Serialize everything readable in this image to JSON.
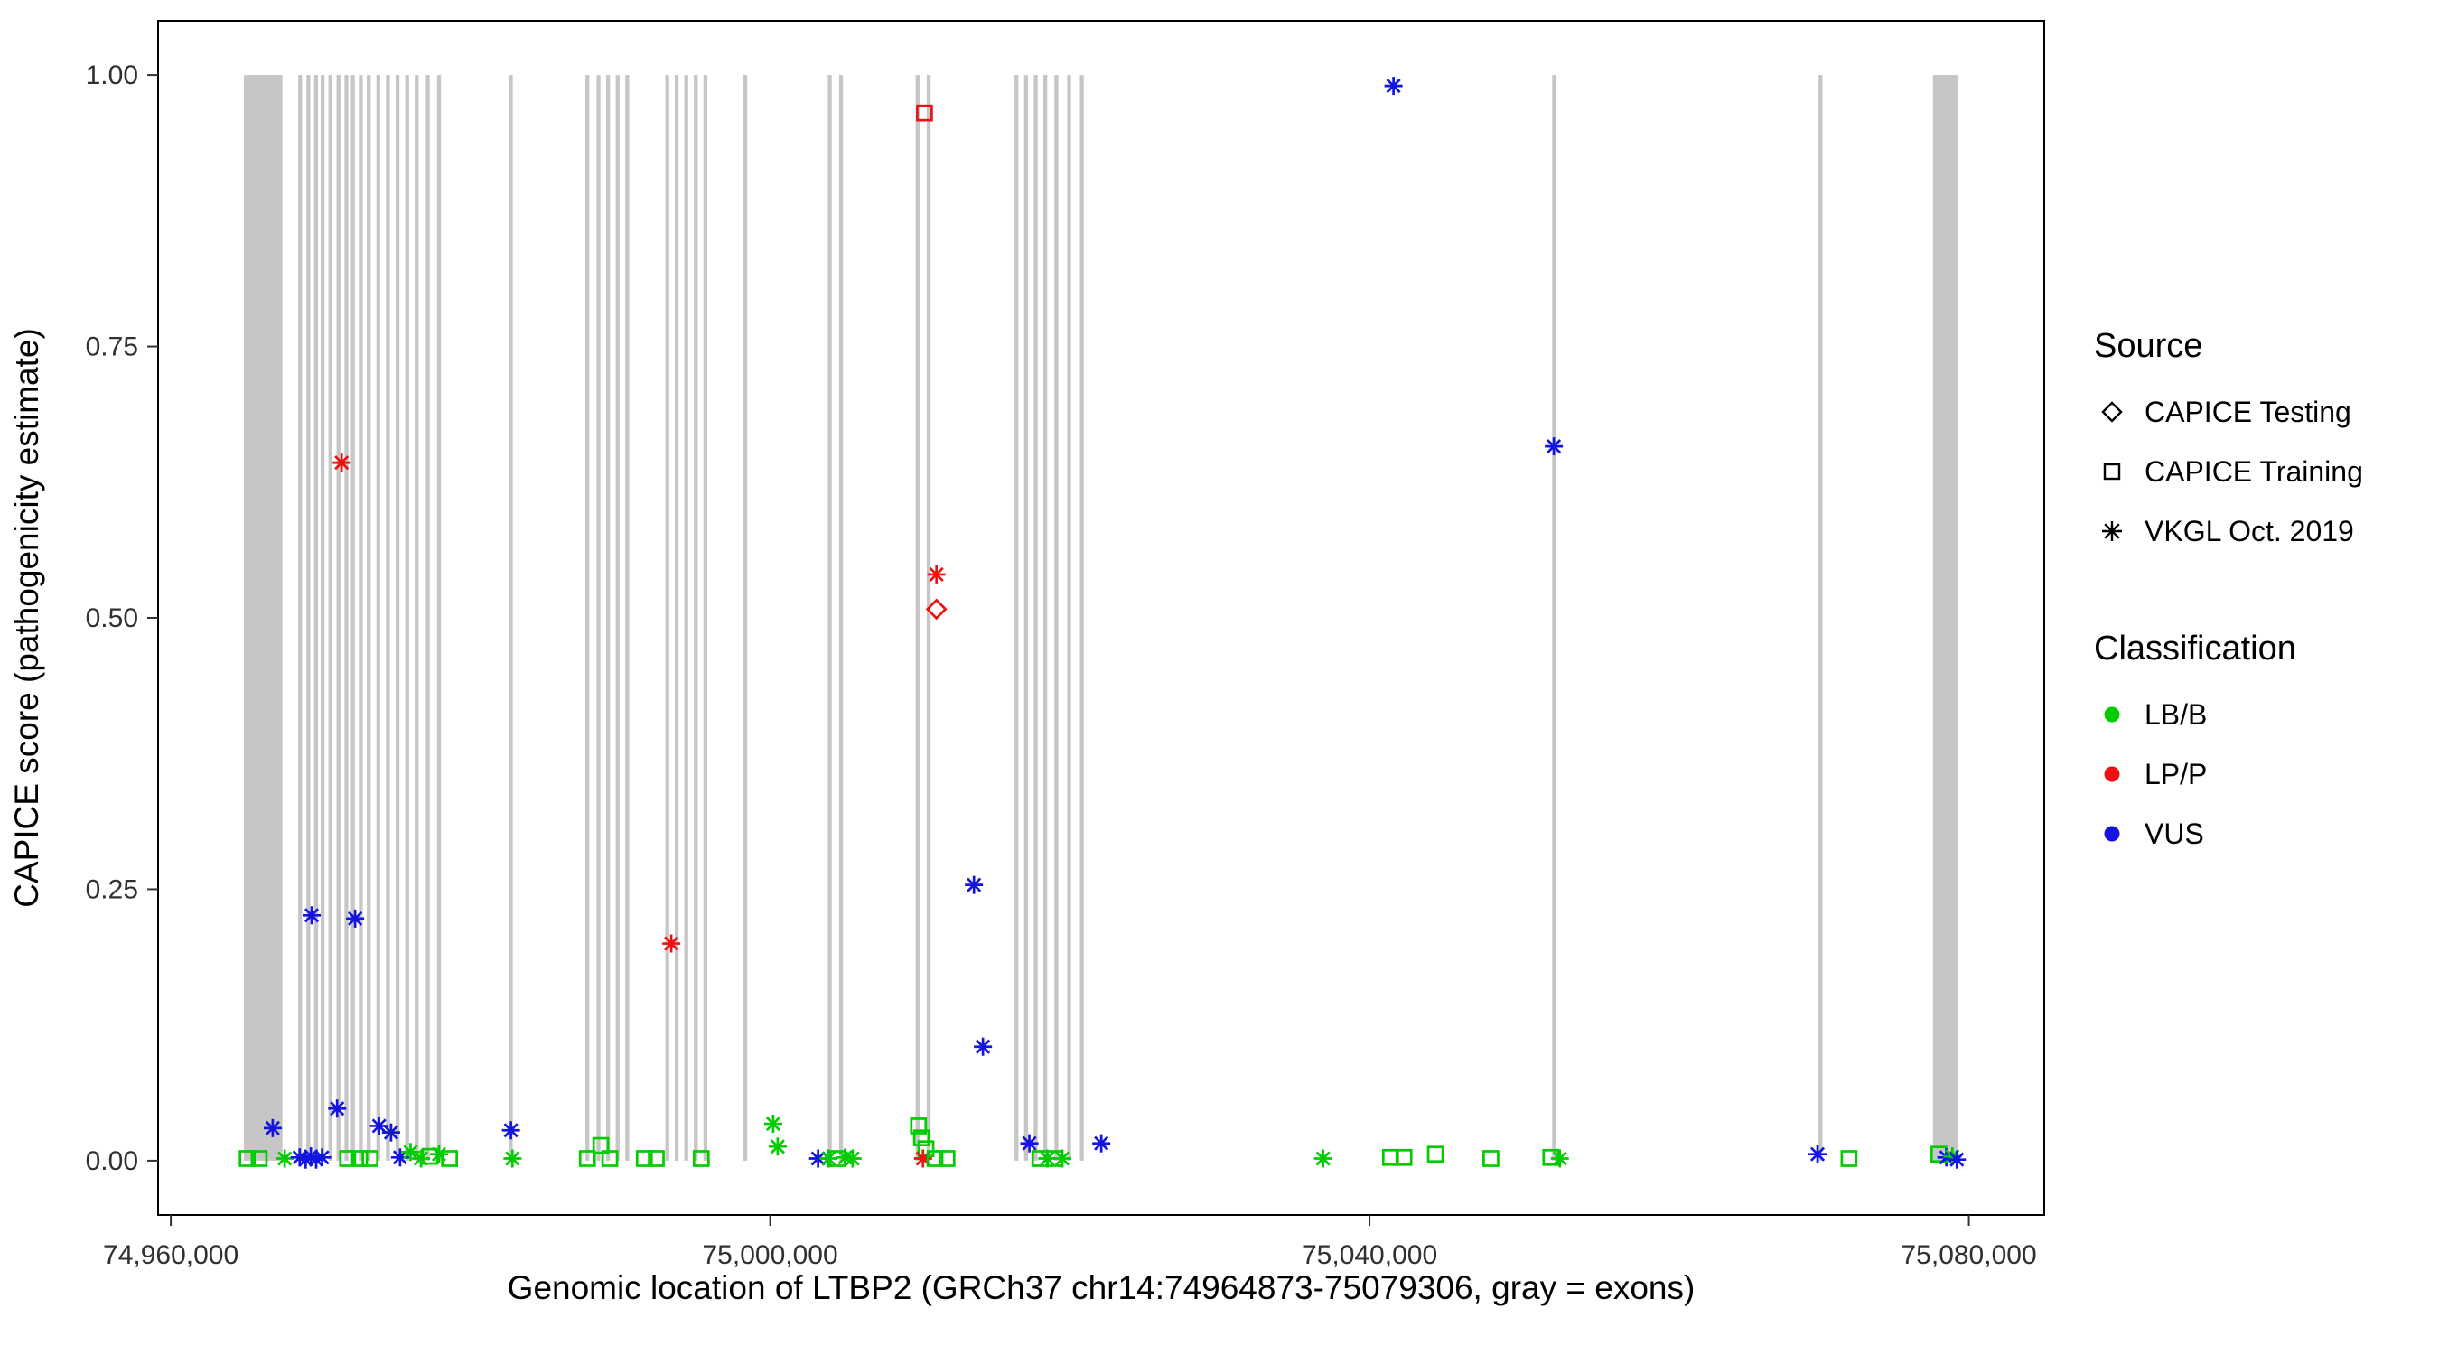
{
  "chart_data": {
    "type": "scatter",
    "title": "",
    "xlabel": "Genomic location of LTBP2 (GRCh37 chr14:74964873-75079306, gray = exons)",
    "ylabel": "CAPICE score (pathogenicity estimate)",
    "xlim": [
      74959150,
      75085030
    ],
    "ylim": [
      -0.05,
      1.05
    ],
    "grid": false,
    "legend_position": "right",
    "x_ticks": [
      {
        "value": 74960000,
        "label": "74,960,000"
      },
      {
        "value": 75000000,
        "label": "75,000,000"
      },
      {
        "value": 75040000,
        "label": "75,040,000"
      },
      {
        "value": 75080000,
        "label": "75,080,000"
      }
    ],
    "y_ticks": [
      {
        "value": 0.0,
        "label": "0.00"
      },
      {
        "value": 0.25,
        "label": "0.25"
      },
      {
        "value": 0.5,
        "label": "0.50"
      },
      {
        "value": 0.75,
        "label": "0.75"
      },
      {
        "value": 1.0,
        "label": "1.00"
      }
    ],
    "colors": {
      "LB/B": "#00cc00",
      "LP/P": "#ee1111",
      "VUS": "#1414e0",
      "exon": "#c6c6c6"
    },
    "source_shapes": {
      "CAPICE Testing": "diamond",
      "CAPICE Training": "square",
      "VKGL Oct. 2019": "asterisk"
    },
    "legend": {
      "source_title": "Source",
      "source_items": [
        {
          "label": "CAPICE Testing",
          "shape": "diamond"
        },
        {
          "label": "CAPICE Training",
          "shape": "square"
        },
        {
          "label": "VKGL Oct. 2019",
          "shape": "asterisk"
        }
      ],
      "class_title": "Classification",
      "class_items": [
        {
          "label": "LB/B",
          "color": "#00cc00"
        },
        {
          "label": "LP/P",
          "color": "#ee1111"
        },
        {
          "label": "VUS",
          "color": "#1414e0"
        }
      ]
    },
    "exons": [
      [
        74964873,
        74967450
      ],
      [
        74968500,
        74968760
      ],
      [
        74969050,
        74969310
      ],
      [
        74969560,
        74969820
      ],
      [
        74970000,
        74970260
      ],
      [
        74970520,
        74970780
      ],
      [
        74971060,
        74971320
      ],
      [
        74971590,
        74971850
      ],
      [
        74972020,
        74972280
      ],
      [
        74972550,
        74972810
      ],
      [
        74973080,
        74973340
      ],
      [
        74973720,
        74973980
      ],
      [
        74974360,
        74974620
      ],
      [
        74975000,
        74975260
      ],
      [
        74975640,
        74975900
      ],
      [
        74976280,
        74976540
      ],
      [
        74977020,
        74977280
      ],
      [
        74977770,
        74978030
      ],
      [
        74982560,
        74982820
      ],
      [
        74987670,
        74987930
      ],
      [
        74988410,
        74988670
      ],
      [
        74989050,
        74989310
      ],
      [
        74989690,
        74989950
      ],
      [
        74990330,
        74990590
      ],
      [
        74993000,
        74993260
      ],
      [
        74993630,
        74993890
      ],
      [
        74994270,
        74994530
      ],
      [
        74994910,
        74995170
      ],
      [
        74995550,
        74995810
      ],
      [
        74998210,
        74998470
      ],
      [
        75003850,
        75004110
      ],
      [
        75004600,
        75004860
      ],
      [
        75009710,
        75009970
      ],
      [
        75010450,
        75010710
      ],
      [
        75016310,
        75016570
      ],
      [
        75016950,
        75017210
      ],
      [
        75017590,
        75017850
      ],
      [
        75018230,
        75018490
      ],
      [
        75018970,
        75019230
      ],
      [
        75019820,
        75020080
      ],
      [
        75020670,
        75020930
      ],
      [
        75052190,
        75052450
      ],
      [
        75069970,
        75070230
      ],
      [
        75077600,
        75079306
      ]
    ],
    "points": [
      {
        "x": 75041600,
        "y": 0.99,
        "source": "VKGL Oct. 2019",
        "class": "VUS"
      },
      {
        "x": 75010300,
        "y": 0.965,
        "source": "CAPICE Training",
        "class": "LP/P"
      },
      {
        "x": 75052300,
        "y": 0.658,
        "source": "VKGL Oct. 2019",
        "class": "VUS"
      },
      {
        "x": 74971400,
        "y": 0.643,
        "source": "VKGL Oct. 2019",
        "class": "LP/P"
      },
      {
        "x": 75011100,
        "y": 0.54,
        "source": "VKGL Oct. 2019",
        "class": "LP/P"
      },
      {
        "x": 75011100,
        "y": 0.508,
        "source": "CAPICE Testing",
        "class": "LP/P"
      },
      {
        "x": 75013600,
        "y": 0.254,
        "source": "VKGL Oct. 2019",
        "class": "VUS"
      },
      {
        "x": 74969400,
        "y": 0.226,
        "source": "VKGL Oct. 2019",
        "class": "VUS"
      },
      {
        "x": 74972300,
        "y": 0.223,
        "source": "VKGL Oct. 2019",
        "class": "VUS"
      },
      {
        "x": 74993400,
        "y": 0.2,
        "source": "VKGL Oct. 2019",
        "class": "LP/P"
      },
      {
        "x": 75014200,
        "y": 0.105,
        "source": "VKGL Oct. 2019",
        "class": "VUS"
      },
      {
        "x": 74965100,
        "y": 0.002,
        "source": "CAPICE Training",
        "class": "LB/B"
      },
      {
        "x": 74965900,
        "y": 0.002,
        "source": "CAPICE Training",
        "class": "LB/B"
      },
      {
        "x": 74966800,
        "y": 0.03,
        "source": "VKGL Oct. 2019",
        "class": "VUS"
      },
      {
        "x": 74967600,
        "y": 0.002,
        "source": "VKGL Oct. 2019",
        "class": "LB/B"
      },
      {
        "x": 74968600,
        "y": 0.003,
        "source": "VKGL Oct. 2019",
        "class": "VUS"
      },
      {
        "x": 74969000,
        "y": 0.001,
        "source": "VKGL Oct. 2019",
        "class": "VUS"
      },
      {
        "x": 74969350,
        "y": 0.004,
        "source": "VKGL Oct. 2019",
        "class": "VUS"
      },
      {
        "x": 74969700,
        "y": 0.001,
        "source": "VKGL Oct. 2019",
        "class": "VUS"
      },
      {
        "x": 74970100,
        "y": 0.003,
        "source": "VKGL Oct. 2019",
        "class": "VUS"
      },
      {
        "x": 74971100,
        "y": 0.048,
        "source": "VKGL Oct. 2019",
        "class": "VUS"
      },
      {
        "x": 74971800,
        "y": 0.002,
        "source": "CAPICE Training",
        "class": "LB/B"
      },
      {
        "x": 74972600,
        "y": 0.002,
        "source": "CAPICE Training",
        "class": "LB/B"
      },
      {
        "x": 74973300,
        "y": 0.002,
        "source": "CAPICE Training",
        "class": "LB/B"
      },
      {
        "x": 74973900,
        "y": 0.032,
        "source": "VKGL Oct. 2019",
        "class": "VUS"
      },
      {
        "x": 74974700,
        "y": 0.026,
        "source": "VKGL Oct. 2019",
        "class": "VUS"
      },
      {
        "x": 74975300,
        "y": 0.003,
        "source": "VKGL Oct. 2019",
        "class": "VUS"
      },
      {
        "x": 74976000,
        "y": 0.008,
        "source": "VKGL Oct. 2019",
        "class": "LB/B"
      },
      {
        "x": 74976700,
        "y": 0.002,
        "source": "VKGL Oct. 2019",
        "class": "LB/B"
      },
      {
        "x": 74977300,
        "y": 0.004,
        "source": "CAPICE Training",
        "class": "LB/B"
      },
      {
        "x": 74977900,
        "y": 0.006,
        "source": "VKGL Oct. 2019",
        "class": "LB/B"
      },
      {
        "x": 74978600,
        "y": 0.002,
        "source": "CAPICE Training",
        "class": "LB/B"
      },
      {
        "x": 74982700,
        "y": 0.028,
        "source": "VKGL Oct. 2019",
        "class": "VUS"
      },
      {
        "x": 74982800,
        "y": 0.002,
        "source": "VKGL Oct. 2019",
        "class": "LB/B"
      },
      {
        "x": 74987800,
        "y": 0.002,
        "source": "CAPICE Training",
        "class": "LB/B"
      },
      {
        "x": 74988700,
        "y": 0.014,
        "source": "CAPICE Training",
        "class": "LB/B"
      },
      {
        "x": 74989300,
        "y": 0.002,
        "source": "CAPICE Training",
        "class": "LB/B"
      },
      {
        "x": 74991600,
        "y": 0.002,
        "source": "CAPICE Training",
        "class": "LB/B"
      },
      {
        "x": 74992400,
        "y": 0.002,
        "source": "CAPICE Training",
        "class": "LB/B"
      },
      {
        "x": 74995400,
        "y": 0.002,
        "source": "CAPICE Training",
        "class": "LB/B"
      },
      {
        "x": 75000200,
        "y": 0.034,
        "source": "VKGL Oct. 2019",
        "class": "LB/B"
      },
      {
        "x": 75000500,
        "y": 0.013,
        "source": "VKGL Oct. 2019",
        "class": "LB/B"
      },
      {
        "x": 75003200,
        "y": 0.002,
        "source": "VKGL Oct. 2019",
        "class": "VUS"
      },
      {
        "x": 75003900,
        "y": 0.002,
        "source": "VKGL Oct. 2019",
        "class": "LB/B"
      },
      {
        "x": 75004500,
        "y": 0.002,
        "source": "CAPICE Training",
        "class": "LB/B"
      },
      {
        "x": 75005000,
        "y": 0.003,
        "source": "VKGL Oct. 2019",
        "class": "LB/B"
      },
      {
        "x": 75005500,
        "y": 0.002,
        "source": "VKGL Oct. 2019",
        "class": "LB/B"
      },
      {
        "x": 75009900,
        "y": 0.032,
        "source": "CAPICE Training",
        "class": "LB/B"
      },
      {
        "x": 75010100,
        "y": 0.021,
        "source": "CAPICE Training",
        "class": "LB/B"
      },
      {
        "x": 75010400,
        "y": 0.011,
        "source": "CAPICE Training",
        "class": "LB/B"
      },
      {
        "x": 75010200,
        "y": 0.002,
        "source": "VKGL Oct. 2019",
        "class": "LP/P"
      },
      {
        "x": 75011000,
        "y": 0.002,
        "source": "CAPICE Training",
        "class": "LB/B"
      },
      {
        "x": 75011800,
        "y": 0.002,
        "source": "CAPICE Training",
        "class": "LB/B"
      },
      {
        "x": 75017300,
        "y": 0.016,
        "source": "VKGL Oct. 2019",
        "class": "VUS"
      },
      {
        "x": 75018000,
        "y": 0.002,
        "source": "CAPICE Training",
        "class": "LB/B"
      },
      {
        "x": 75018500,
        "y": 0.002,
        "source": "VKGL Oct. 2019",
        "class": "LB/B"
      },
      {
        "x": 75019000,
        "y": 0.002,
        "source": "CAPICE Training",
        "class": "LB/B"
      },
      {
        "x": 75019500,
        "y": 0.002,
        "source": "VKGL Oct. 2019",
        "class": "LB/B"
      },
      {
        "x": 75022100,
        "y": 0.016,
        "source": "VKGL Oct. 2019",
        "class": "VUS"
      },
      {
        "x": 75036900,
        "y": 0.002,
        "source": "VKGL Oct. 2019",
        "class": "LB/B"
      },
      {
        "x": 75041400,
        "y": 0.003,
        "source": "CAPICE Training",
        "class": "LB/B"
      },
      {
        "x": 75042300,
        "y": 0.003,
        "source": "CAPICE Training",
        "class": "LB/B"
      },
      {
        "x": 75044400,
        "y": 0.006,
        "source": "CAPICE Training",
        "class": "LB/B"
      },
      {
        "x": 75048100,
        "y": 0.002,
        "source": "CAPICE Training",
        "class": "LB/B"
      },
      {
        "x": 75052100,
        "y": 0.003,
        "source": "CAPICE Training",
        "class": "LB/B"
      },
      {
        "x": 75052700,
        "y": 0.002,
        "source": "VKGL Oct. 2019",
        "class": "LB/B"
      },
      {
        "x": 75069900,
        "y": 0.006,
        "source": "VKGL Oct. 2019",
        "class": "VUS"
      },
      {
        "x": 75072000,
        "y": 0.002,
        "source": "CAPICE Training",
        "class": "LB/B"
      },
      {
        "x": 75078000,
        "y": 0.006,
        "source": "CAPICE Training",
        "class": "LB/B"
      },
      {
        "x": 75078500,
        "y": 0.003,
        "source": "VKGL Oct. 2019",
        "class": "VUS"
      },
      {
        "x": 75078900,
        "y": 0.004,
        "source": "VKGL Oct. 2019",
        "class": "LB/B"
      },
      {
        "x": 75079200,
        "y": 0.001,
        "source": "VKGL Oct. 2019",
        "class": "VUS"
      }
    ]
  }
}
